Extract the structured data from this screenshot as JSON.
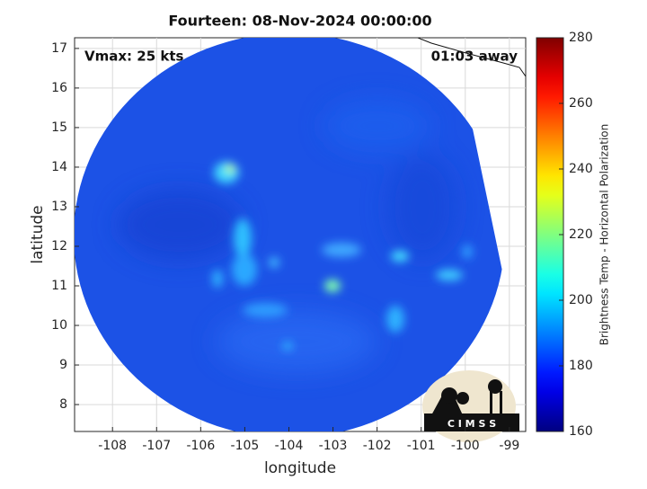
{
  "chart_data": {
    "type": "heatmap",
    "title": "Fourteen: 08-Nov-2024 00:00:00",
    "x_label": "longitude",
    "y_label": "latitude",
    "annotations": [
      "Vmax: 25 kts",
      "01:03 away"
    ],
    "xlim": [
      -108.86,
      -98.63
    ],
    "ylim": [
      7.32,
      17.27
    ],
    "xticks": [
      -108,
      -107,
      -106,
      -105,
      -104,
      -103,
      -102,
      -101,
      -100,
      -99
    ],
    "yticks": [
      8,
      9,
      10,
      11,
      12,
      13,
      14,
      15,
      16,
      17
    ],
    "grid": true,
    "colormap": "jet",
    "colorbar": {
      "label": "Brightness Temp - Horizontal Polarization",
      "lim": [
        160,
        280
      ],
      "ticks": [
        160,
        180,
        200,
        220,
        240,
        260,
        280
      ]
    },
    "logo_text": "C I M S S"
  }
}
